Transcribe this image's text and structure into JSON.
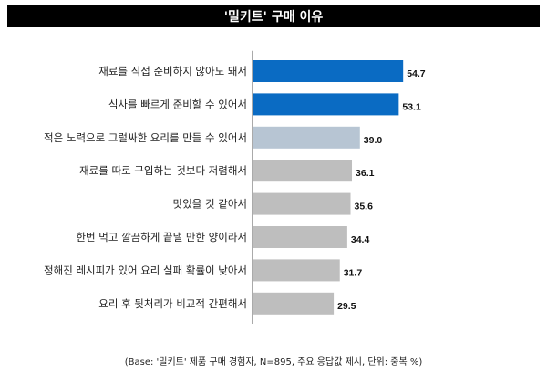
{
  "header": {
    "title": "'밀키트' 구매 이유"
  },
  "chart_data": {
    "type": "bar",
    "orientation": "horizontal",
    "categories": [
      "재료를 직접 준비하지 않아도 돼서",
      "식사를 빠르게 준비할 수 있어서",
      "적은 노력으로 그럴싸한 요리를 만들 수 있어서",
      "재료를 따로 구입하는 것보다 저렴해서",
      "맛있을 것 같아서",
      "한번 먹고 깔끔하게 끝낼 만한 양이라서",
      "정해진 레시피가 있어 요리 실패 확률이 낮아서",
      "요리 후 뒷처리가 비교적 간편해서"
    ],
    "values": [
      54.7,
      53.1,
      39.0,
      36.1,
      35.6,
      34.4,
      31.7,
      29.5
    ],
    "value_labels": [
      "54.7",
      "53.1",
      "39.0",
      "36.1",
      "35.6",
      "34.4",
      "31.7",
      "29.5"
    ],
    "colors": [
      "#0A6BC3",
      "#0A6BC3",
      "#B7C5D3",
      "#BEBEBE",
      "#BEBEBE",
      "#BEBEBE",
      "#BEBEBE",
      "#BEBEBE"
    ],
    "xlim": [
      0,
      60
    ],
    "grid": false,
    "legend": "none"
  },
  "footnote": "(Base: '밀키트' 제품 구매 경험자, N=895, 주요 응답값 제시, 단위: 중복 %)"
}
